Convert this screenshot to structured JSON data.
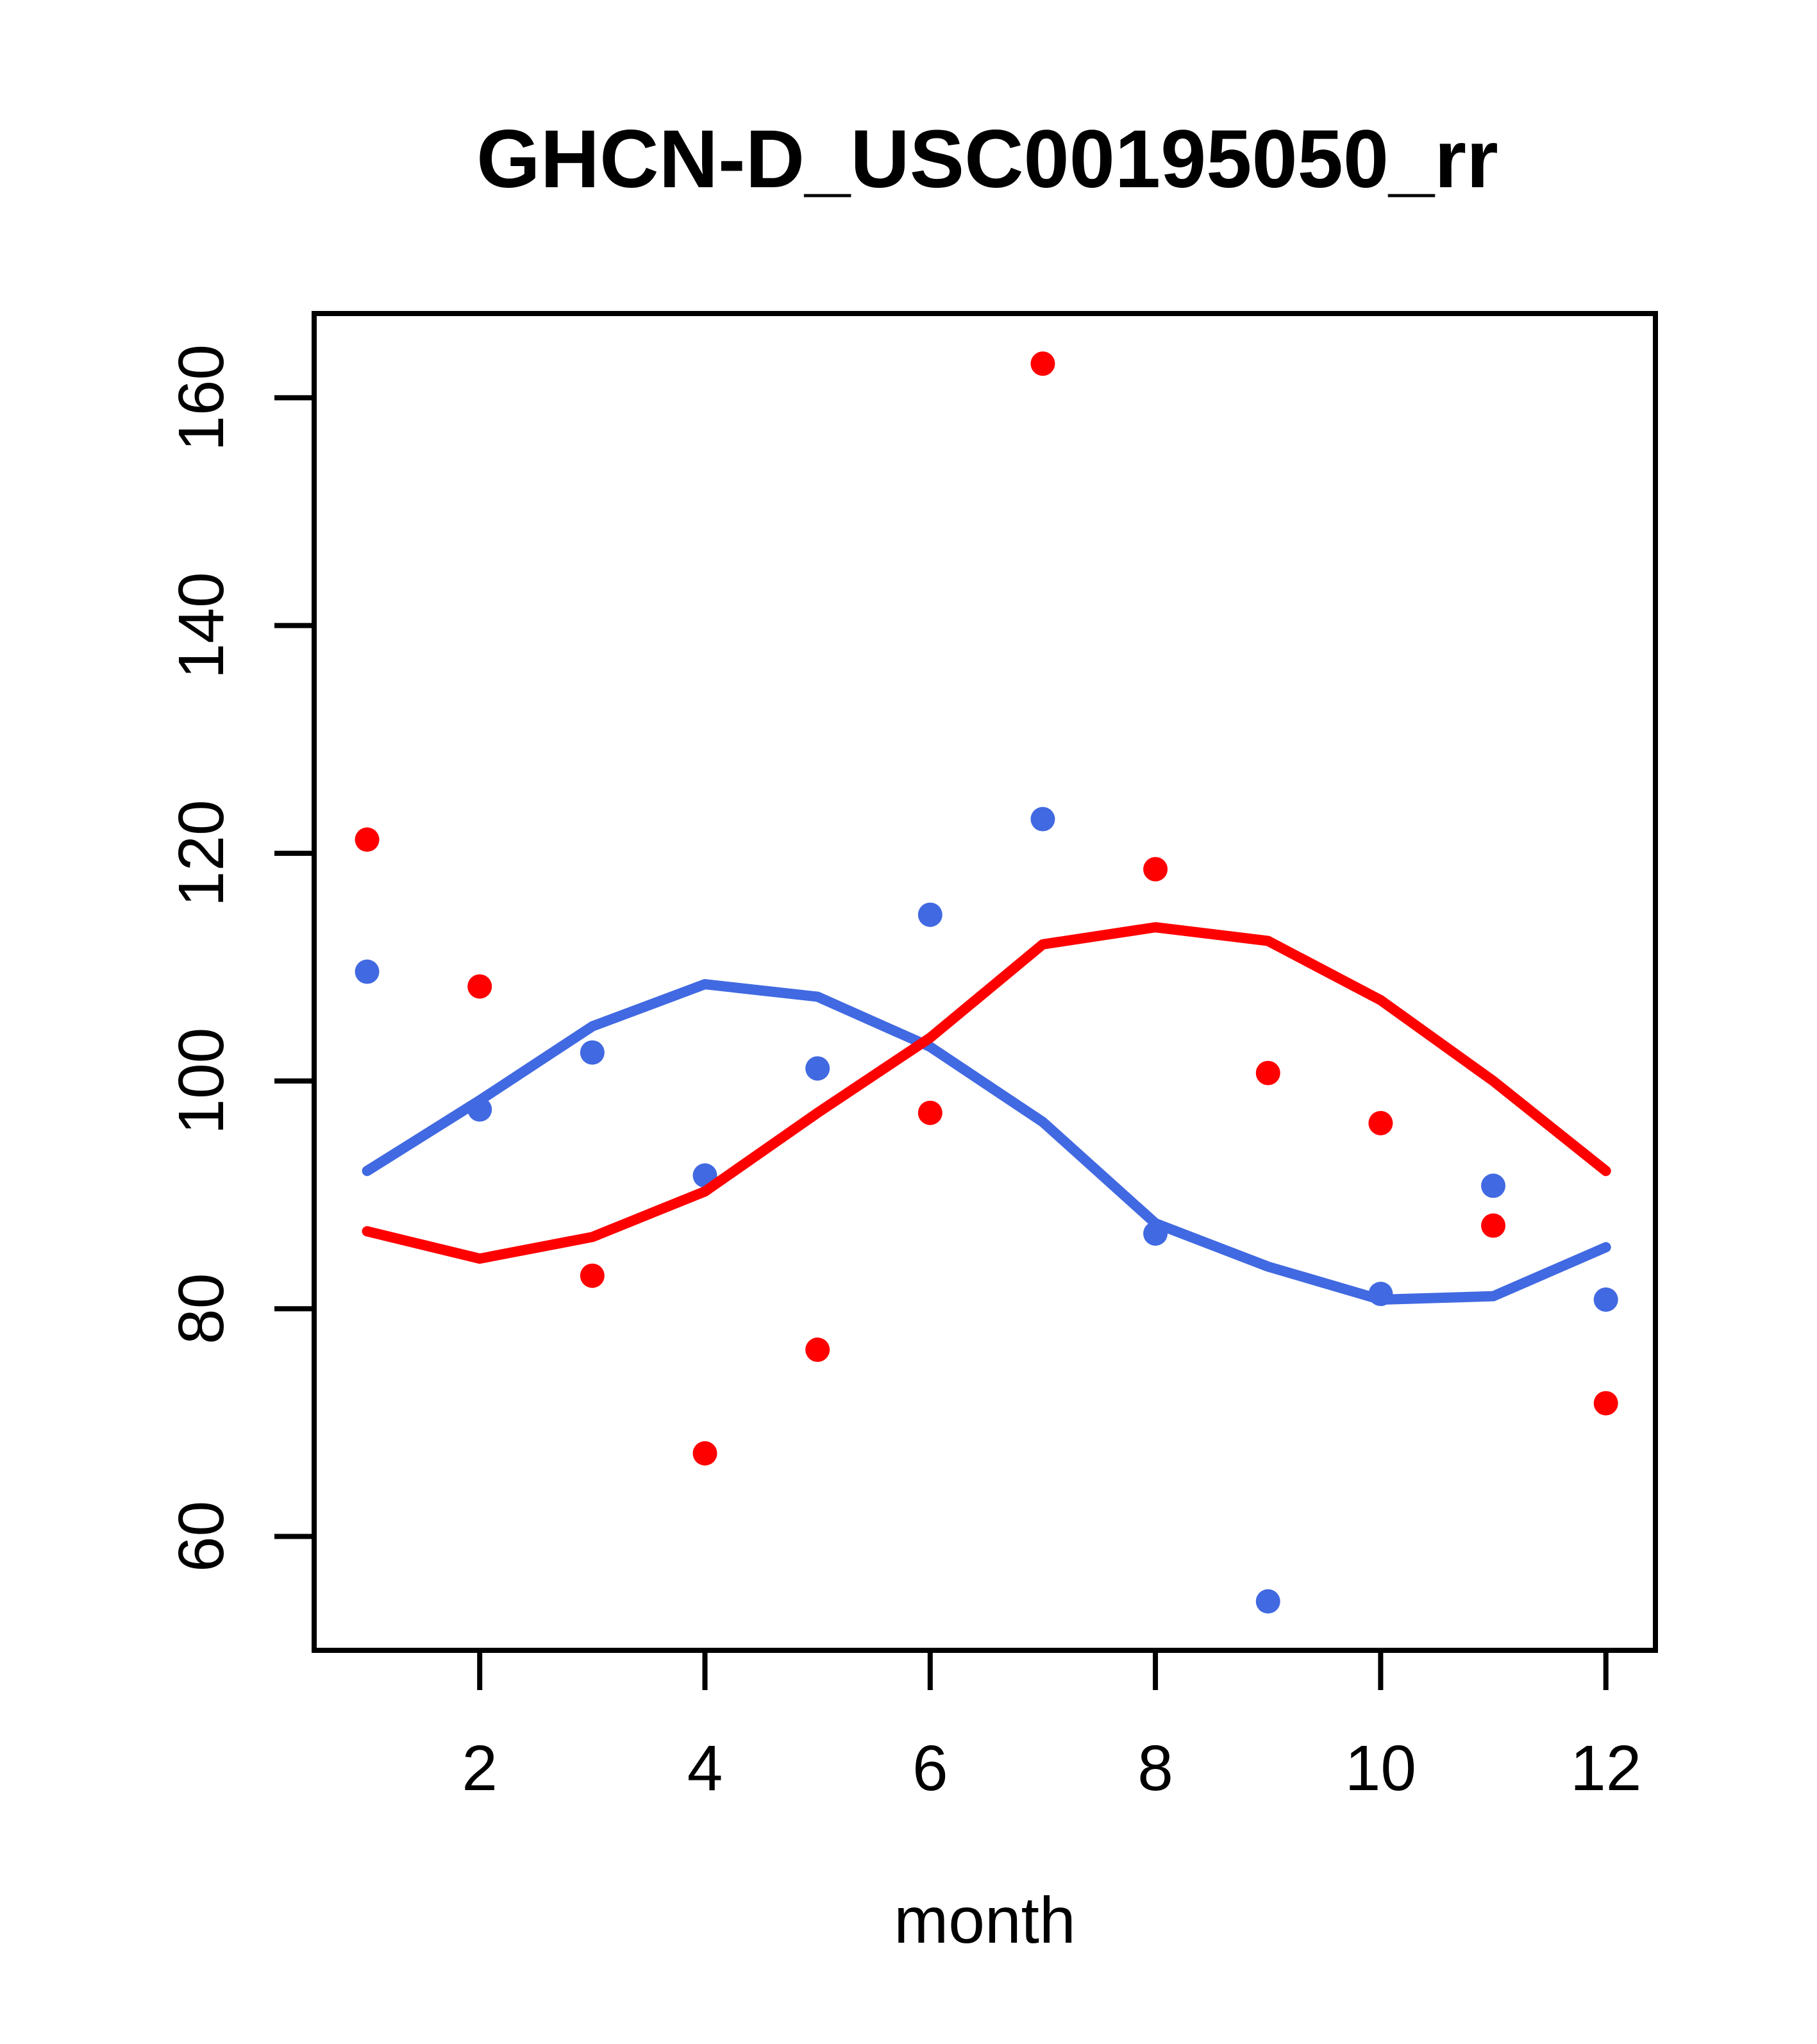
{
  "page": {
    "background_color": "#FFFFFF",
    "text_color": "#000000"
  },
  "chart_data": {
    "type": "scatter",
    "title": "GHCN-D_USC00195050_rr",
    "xlabel": "month",
    "ylabel": "",
    "x": [
      1,
      2,
      3,
      4,
      5,
      6,
      7,
      8,
      9,
      10,
      11,
      12
    ],
    "series": [
      {
        "name": "red-points",
        "kind": "scatter",
        "color": "#FF0000",
        "values": [
          121.2,
          108.3,
          82.9,
          67.3,
          76.4,
          97.2,
          163.0,
          118.6,
          100.7,
          96.3,
          87.3,
          71.7
        ]
      },
      {
        "name": "blue-points",
        "kind": "scatter",
        "color": "#4169E1",
        "values": [
          109.6,
          97.5,
          102.5,
          91.7,
          101.1,
          114.6,
          123.0,
          86.6,
          54.3,
          81.3,
          90.8,
          80.8
        ]
      },
      {
        "name": "blue-loess-line",
        "kind": "line",
        "color": "#4169E1",
        "values": [
          92.1,
          98.3,
          104.8,
          108.5,
          107.4,
          103.0,
          96.4,
          87.5,
          83.7,
          80.8,
          81.1,
          85.4
        ]
      },
      {
        "name": "red-loess-line",
        "kind": "line",
        "color": "#FF0000",
        "values": [
          86.8,
          84.4,
          86.3,
          90.3,
          97.2,
          103.8,
          112.0,
          113.5,
          112.3,
          107.1,
          100.0,
          92.1
        ]
      }
    ],
    "xticks": [
      2,
      4,
      6,
      8,
      10,
      12
    ],
    "yticks": [
      60,
      80,
      100,
      120,
      140,
      160
    ],
    "xlim": [
      0.53,
      12.44
    ],
    "ylim": [
      50.0,
      167.4
    ],
    "grid": false,
    "legend": null,
    "axis_color": "#000000"
  }
}
